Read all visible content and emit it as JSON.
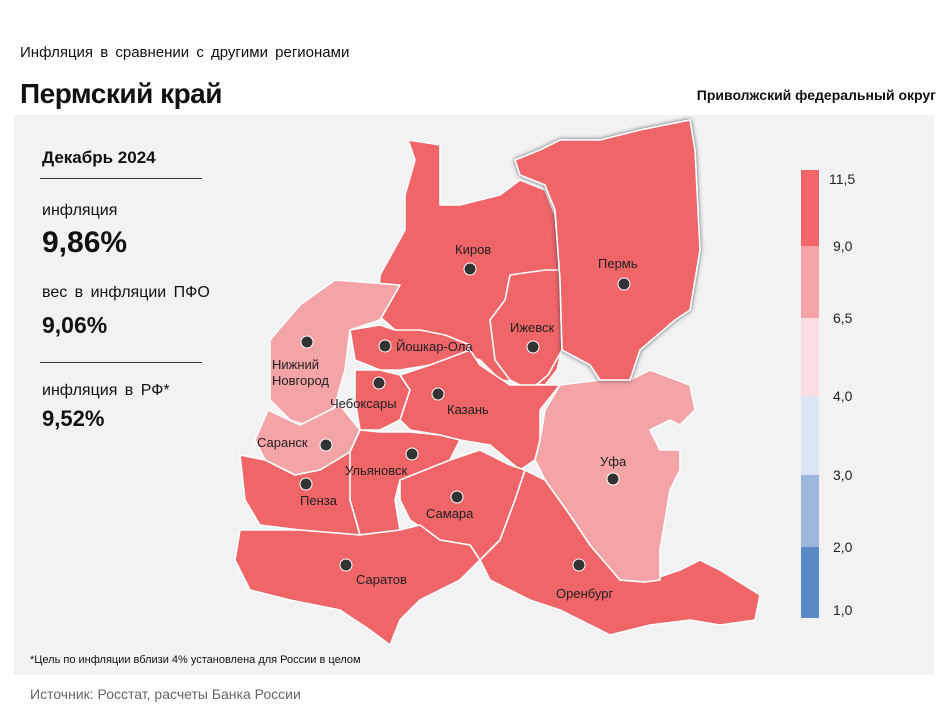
{
  "header": {
    "subtitle": "Инфляция в сравнении с другими регионами",
    "title": "Пермский край",
    "district": "Приволжский федеральный округ"
  },
  "stats": {
    "period": "Декабрь 2024",
    "inflation_label": "инфляция",
    "inflation_value": "9,86%",
    "weight_label": "вес в инфляции ПФО",
    "weight_value": "9,06%",
    "rf_label": "инфляция в РФ*",
    "rf_value": "9,52%"
  },
  "footnote": "*Цель по инфляции вблизи 4% установлена для России в целом",
  "source": "Источник: Росстат, расчеты Банка России",
  "legend": {
    "ticks": [
      "11,5",
      "9,0",
      "6,5",
      "4,0",
      "3,0",
      "2,0",
      "1,0"
    ],
    "colors": [
      "#f2666b",
      "#f5a3a8",
      "#fbdde2",
      "#dbe5f3",
      "#9cb8dd",
      "#5b8ac6"
    ]
  },
  "colors": {
    "high": "#ef6568",
    "mid": "#f4a3a6",
    "border": "#ffffff"
  },
  "map": {
    "highlighted": "Пермь",
    "regions": [
      {
        "city": "Киров",
        "band": "9,0–11,5"
      },
      {
        "city": "Пермь",
        "band": "9,0–11,5"
      },
      {
        "city": "Ижевск",
        "band": "9,0–11,5"
      },
      {
        "city": "Нижний Новгород",
        "band": "6,5–9,0"
      },
      {
        "city": "Йошкар-Ола",
        "band": "9,0–11,5"
      },
      {
        "city": "Чебоксары",
        "band": "9,0–11,5"
      },
      {
        "city": "Казань",
        "band": "9,0–11,5"
      },
      {
        "city": "Саранск",
        "band": "6,5–9,0"
      },
      {
        "city": "Ульяновск",
        "band": "9,0–11,5"
      },
      {
        "city": "Самара",
        "band": "9,0–11,5"
      },
      {
        "city": "Пенза",
        "band": "9,0–11,5"
      },
      {
        "city": "Саратов",
        "band": "9,0–11,5"
      },
      {
        "city": "Оренбург",
        "band": "9,0–11,5"
      },
      {
        "city": "Уфа",
        "band": "6,5–9,0"
      }
    ],
    "labels": {
      "kirov": "Киров",
      "perm": "Пермь",
      "izhevsk": "Ижевск",
      "nn1": "Нижний",
      "nn2": "Новгород",
      "yoshkar": "Йошкар-Ола",
      "cheb": "Чебоксары",
      "kazan": "Казань",
      "saransk": "Саранск",
      "ulyan": "Ульяновск",
      "penza": "Пенза",
      "samara": "Самара",
      "saratov": "Саратов",
      "orenburg": "Оренбург",
      "ufa": "Уфа"
    }
  }
}
